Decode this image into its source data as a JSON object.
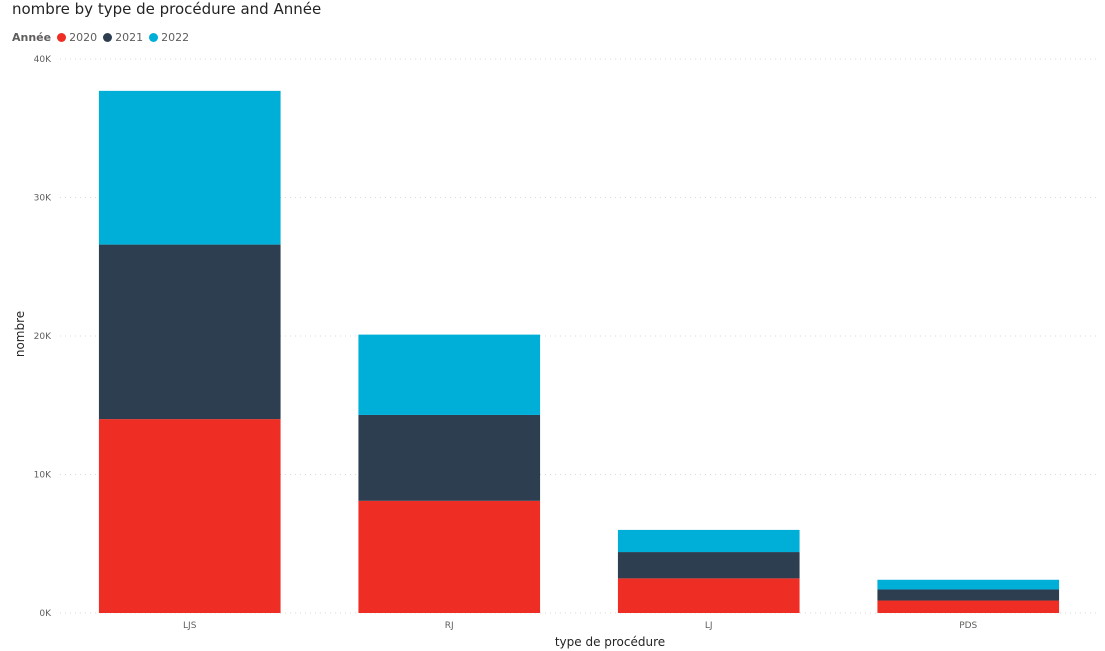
{
  "chart_title": "nombre by type de procédure and Année",
  "legend": {
    "title": "Année",
    "items": [
      {
        "label": "2020",
        "color": "#EE2E24"
      },
      {
        "label": "2021",
        "color": "#2D3E50"
      },
      {
        "label": "2022",
        "color": "#00AFD8"
      }
    ]
  },
  "chart_data": {
    "type": "bar",
    "stacked": true,
    "title": "nombre by type de procédure and Année",
    "xlabel": "type de procédure",
    "ylabel": "nombre",
    "categories": [
      "LJS",
      "RJ",
      "LJ",
      "PDS"
    ],
    "series": [
      {
        "name": "2020",
        "color": "#EE2E24",
        "values": [
          14000,
          8100,
          2500,
          900
        ]
      },
      {
        "name": "2021",
        "color": "#2D3E50",
        "values": [
          12600,
          6200,
          1900,
          800
        ]
      },
      {
        "name": "2022",
        "color": "#00AFD8",
        "values": [
          11100,
          5800,
          1600,
          700
        ]
      }
    ],
    "ylim": [
      0,
      40000
    ],
    "yticks": [
      {
        "value": 0,
        "label": "0K"
      },
      {
        "value": 10000,
        "label": "10K"
      },
      {
        "value": 20000,
        "label": "20K"
      },
      {
        "value": 30000,
        "label": "30K"
      },
      {
        "value": 40000,
        "label": "40K"
      }
    ],
    "grid": true,
    "legend_position": "top-left"
  }
}
